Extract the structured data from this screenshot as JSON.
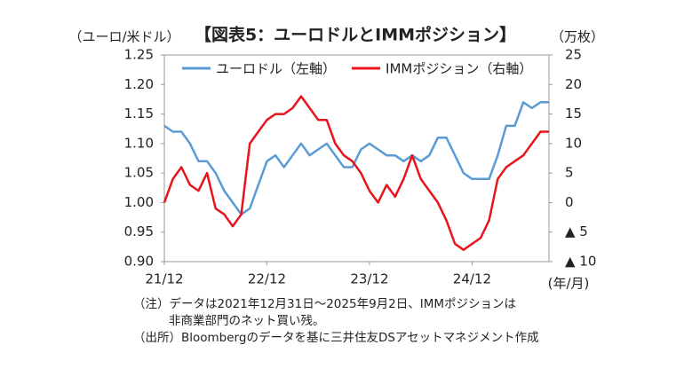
{
  "chart_data": {
    "type": "line",
    "title": "【図表5：ユーロドルとIMMポジション】",
    "y_label": "（ユーロ/米ドル）",
    "y2_label": "（万枚）",
    "x_label": "(年/月)",
    "notes": [
      "（注）データは2021年12月31日～2025年9月2日、IMMポジションは",
      "非商業部門のネット買い残。",
      "（出所）Bloombergのデータを基に三井住友DSアセットマネジメント作成"
    ],
    "x": [
      "21/12",
      "22/01",
      "22/02",
      "22/03",
      "22/04",
      "22/05",
      "22/06",
      "22/07",
      "22/08",
      "22/09",
      "22/10",
      "22/11",
      "22/12",
      "23/01",
      "23/02",
      "23/03",
      "23/04",
      "23/05",
      "23/06",
      "23/07",
      "23/08",
      "23/09",
      "23/10",
      "23/11",
      "23/12",
      "24/01",
      "24/02",
      "24/03",
      "24/04",
      "24/05",
      "24/06",
      "24/07",
      "24/08",
      "24/09",
      "24/10",
      "24/11",
      "24/12",
      "25/01",
      "25/02",
      "25/03",
      "25/04",
      "25/05",
      "25/06",
      "25/07",
      "25/08",
      "25/09"
    ],
    "xticks": [
      "21/12",
      "22/12",
      "23/12",
      "24/12"
    ],
    "ylim": [
      0.9,
      1.25
    ],
    "yticks": [
      {
        "value": 0.9,
        "label": "0.90"
      },
      0.95,
      {
        "value": 1.0,
        "label": "1.00"
      },
      1.05,
      {
        "value": 1.1,
        "label": "1.10"
      },
      1.15,
      {
        "value": 1.2,
        "label": "1.20"
      },
      1.25
    ],
    "y2lim": [
      -10,
      25
    ],
    "y2ticks": [
      25,
      20,
      15,
      10,
      5,
      0,
      {
        "value": -5,
        "label": "▲ 5"
      },
      {
        "value": -10,
        "label": "▲ 10"
      }
    ],
    "legend": "top-left",
    "series": [
      {
        "name": "ユーロドル（左軸）",
        "color": "#5b9bd5",
        "values": [
          1.13,
          1.12,
          1.12,
          1.1,
          1.07,
          1.07,
          1.05,
          1.02,
          1.0,
          0.98,
          0.99,
          1.03,
          1.07,
          1.08,
          1.06,
          1.08,
          1.1,
          1.08,
          1.09,
          1.1,
          1.08,
          1.06,
          1.06,
          1.09,
          1.1,
          1.09,
          1.08,
          1.08,
          1.07,
          1.08,
          1.07,
          1.08,
          1.11,
          1.11,
          1.08,
          1.05,
          1.04,
          1.04,
          1.04,
          1.08,
          1.13,
          1.13,
          1.17,
          1.16,
          1.17,
          1.17
        ]
      },
      {
        "name": "IMMポジション（右軸）",
        "color": "#e8141b",
        "axis": "y2",
        "values": [
          0,
          4,
          6,
          3,
          2,
          5,
          -1,
          -2,
          -4,
          -2,
          10,
          12,
          14,
          15,
          15,
          16,
          18,
          16,
          14,
          14,
          10,
          8,
          7,
          5,
          2,
          0,
          3,
          1,
          4,
          8,
          4,
          2,
          0,
          -3,
          -7,
          -8,
          -7,
          -6,
          -3,
          4,
          6,
          7,
          8,
          10,
          12,
          12
        ]
      }
    ]
  }
}
